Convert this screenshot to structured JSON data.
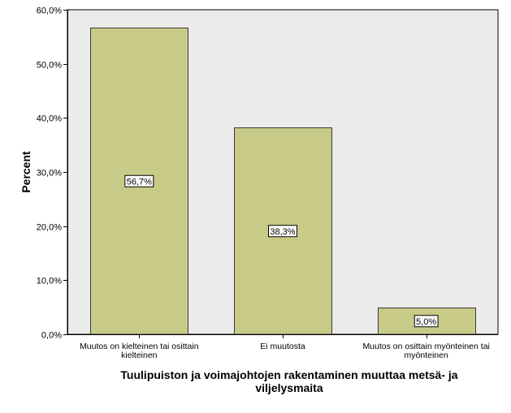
{
  "chart_data": {
    "type": "bar",
    "categories": [
      "Muutos on kielteinen tai osittain kielteinen",
      "Ei muutosta",
      "Muutos on osittain myönteinen tai myönteinen"
    ],
    "category_label_lines": [
      [
        "Muutos on kielteinen tai osittain",
        "kielteinen"
      ],
      [
        "Ei muutosta"
      ],
      [
        "Muutos on osittain myönteinen tai",
        "myönteinen"
      ]
    ],
    "values": [
      56.7,
      38.3,
      5.0
    ],
    "data_labels": [
      "56,7%",
      "38,3%",
      "5,0%"
    ],
    "xlabel": "Tuulipuiston ja voimajohtojen rakentaminen muuttaa metsä- ja viljelysmaita",
    "xlabel_lines": [
      "Tuulipuiston ja voimajohtojen rakentaminen muuttaa metsä- ja",
      "viljelysmaita"
    ],
    "ylabel": "Percent",
    "ylim": [
      0,
      60
    ],
    "yticks": [
      0,
      10,
      20,
      30,
      40,
      50,
      60
    ],
    "ytick_labels": [
      "0,0%",
      "10,0%",
      "20,0%",
      "30,0%",
      "40,0%",
      "50,0%",
      "60,0%"
    ],
    "grid": false,
    "colors": {
      "bar_fill": "#c8cb87",
      "bar_stroke": "#3a3a3a",
      "plot_background": "#ebebeb",
      "axis": "#000000"
    }
  }
}
